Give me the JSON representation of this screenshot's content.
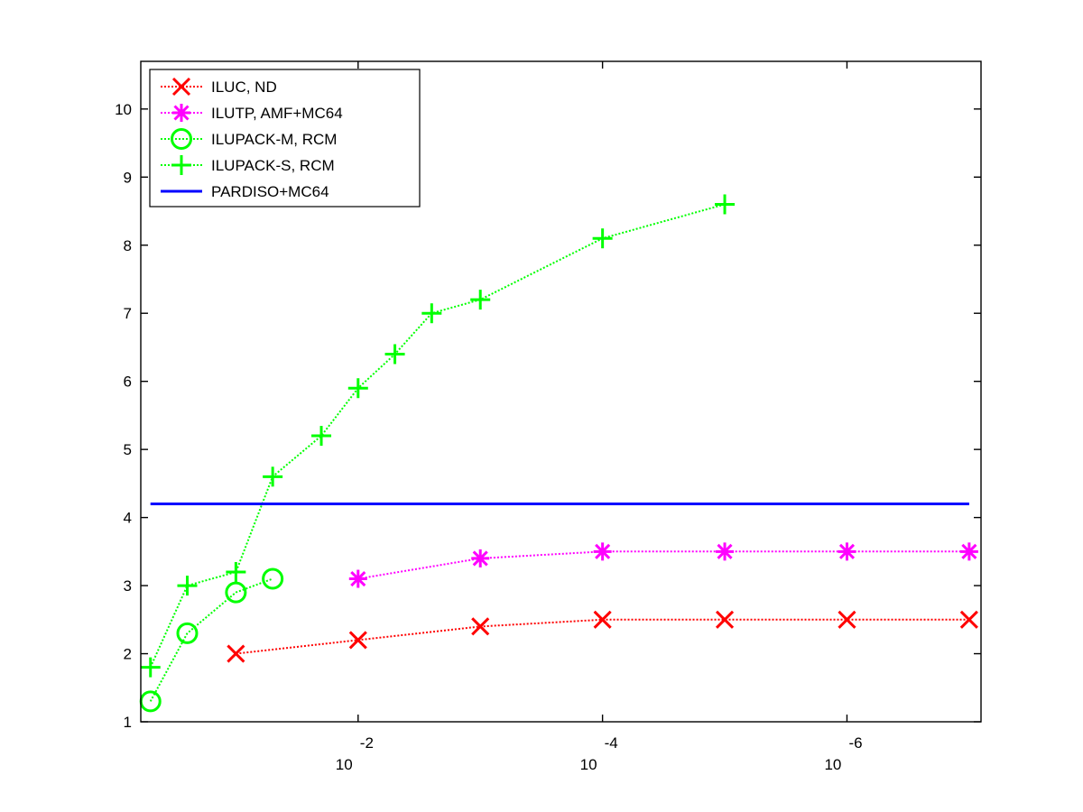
{
  "chart_data": {
    "type": "line",
    "title": "",
    "xlabel": "",
    "ylabel": "",
    "x_scale": "log",
    "x_direction": "decreasing",
    "xlim": [
      0.6,
      8e-08
    ],
    "ylim": [
      1,
      10.7
    ],
    "x_ticks": [
      {
        "value": 0.01,
        "base": "10",
        "exp": "-2"
      },
      {
        "value": 0.0001,
        "base": "10",
        "exp": "-4"
      },
      {
        "value": 1e-06,
        "base": "10",
        "exp": "-6"
      }
    ],
    "y_ticks": [
      1,
      2,
      3,
      4,
      5,
      6,
      7,
      8,
      9,
      10
    ],
    "grid": false,
    "legend_position": "top-left",
    "series": [
      {
        "name": "ILUC,  ND",
        "color": "#ff0000",
        "marker": "x",
        "line": "dotted",
        "x": [
          0.1,
          0.01,
          0.001,
          0.0001,
          1e-05,
          1e-06,
          1e-07
        ],
        "y": [
          2.0,
          2.2,
          2.4,
          2.5,
          2.5,
          2.5,
          2.5
        ]
      },
      {
        "name": "ILUTP, AMF+MC64",
        "color": "#ff00ff",
        "marker": "asterisk",
        "line": "dotted",
        "x": [
          0.01,
          0.001,
          0.0001,
          1e-05,
          1e-06,
          1e-07
        ],
        "y": [
          3.1,
          3.4,
          3.5,
          3.5,
          3.5,
          3.5
        ]
      },
      {
        "name": "ILUPACK-M, RCM",
        "color": "#00ff00",
        "marker": "circle",
        "line": "dotted",
        "x": [
          0.5,
          0.25,
          0.1,
          0.05
        ],
        "y": [
          1.3,
          2.3,
          2.9,
          3.1
        ]
      },
      {
        "name": "ILUPACK-S, RCM",
        "color": "#00ff00",
        "marker": "plus",
        "line": "dotted",
        "x": [
          0.5,
          0.25,
          0.1,
          0.05,
          0.02,
          0.01,
          0.005,
          0.0025,
          0.001,
          0.0001,
          1e-05
        ],
        "y": [
          1.8,
          3.0,
          3.2,
          4.6,
          5.2,
          5.9,
          6.4,
          7.0,
          7.2,
          8.1,
          8.6
        ]
      },
      {
        "name": "PARDISO+MC64",
        "color": "#0000ff",
        "marker": "none",
        "line": "solid",
        "x": [
          0.5,
          1e-07
        ],
        "y": [
          4.2,
          4.2
        ]
      }
    ]
  }
}
